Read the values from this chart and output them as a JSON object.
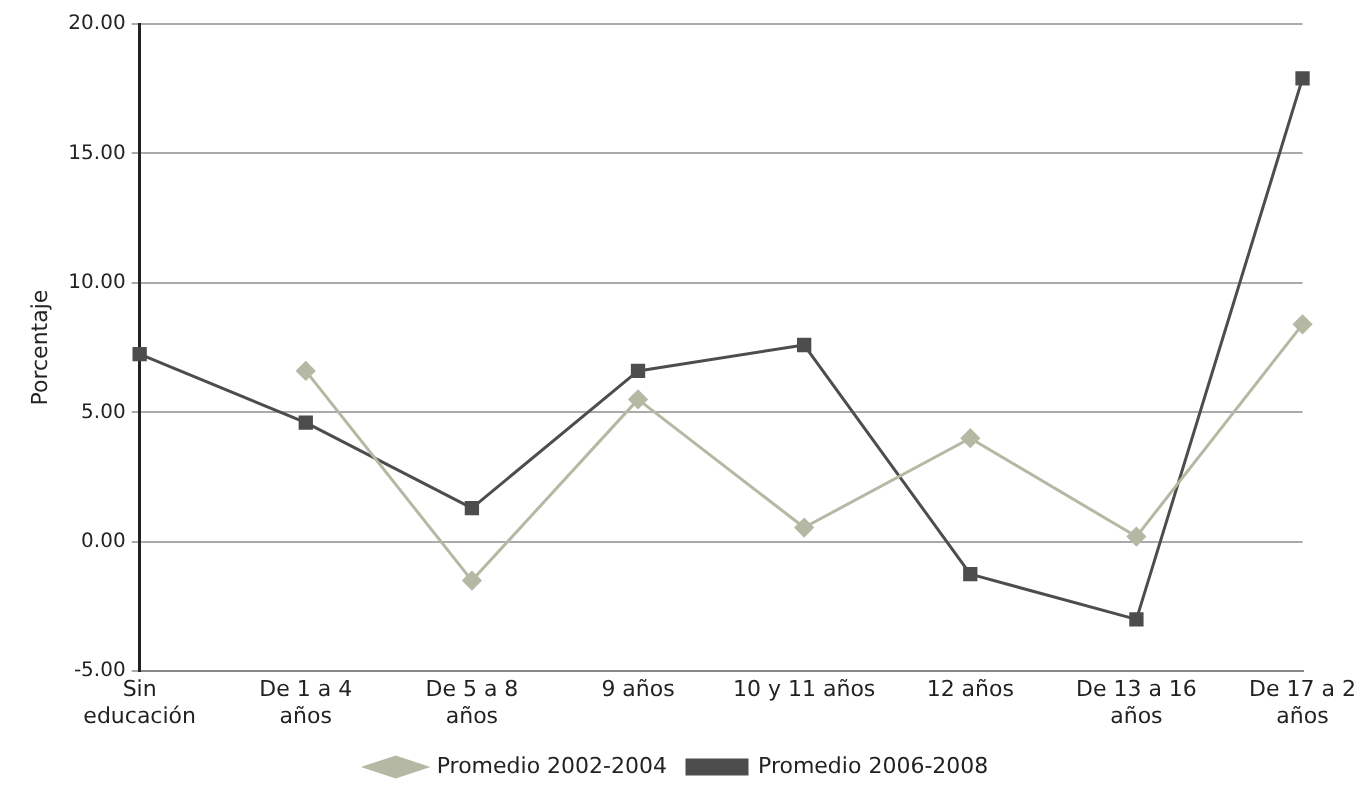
{
  "chart_data": {
    "type": "line",
    "ylabel": "Porcentaje",
    "categories": [
      "Sin\neducación",
      "De 1 a 4\naños",
      "De 5 a 8\naños",
      "9 años",
      "10 y 11 años",
      "12 años",
      "De 13 a 16\naños",
      "De 17 a 2\naños"
    ],
    "series": [
      {
        "name": "Promedio 2002-2004",
        "color": "#b5b8a3",
        "marker": "diamond",
        "values": [
          null,
          6.6,
          -1.5,
          5.5,
          0.55,
          4.0,
          0.2,
          8.4
        ]
      },
      {
        "name": "Promedio 2006-2008",
        "color": "#4d4d4d",
        "marker": "square",
        "values": [
          7.25,
          4.6,
          1.3,
          6.6,
          7.6,
          -1.25,
          -3.0,
          17.9
        ]
      }
    ],
    "ylim": [
      -5,
      20
    ],
    "yticks": [
      {
        "value": -5,
        "label": "-5.00"
      },
      {
        "value": 0,
        "label": "0.00"
      },
      {
        "value": 5,
        "label": "5.00"
      },
      {
        "value": 10,
        "label": "10.00"
      },
      {
        "value": 15,
        "label": "15.00"
      },
      {
        "value": 20,
        "label": "20.00"
      }
    ],
    "grid": "y",
    "legend": "bottom",
    "line_style": "solid"
  }
}
